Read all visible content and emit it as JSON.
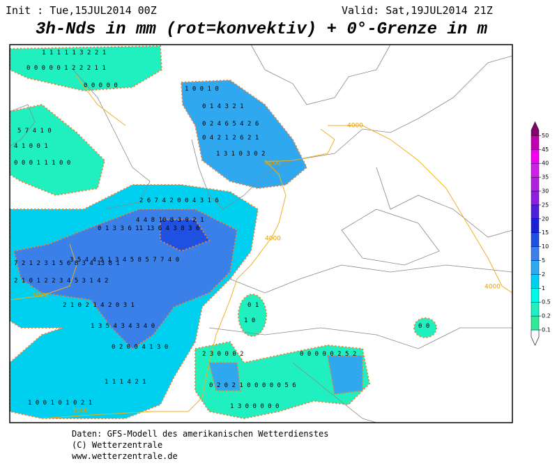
{
  "header": {
    "init": "Init : Tue,15JUL2014 00Z",
    "valid": "Valid: Sat,19JUL2014 21Z",
    "title": "3h-Nds in mm (rot=konvektiv) + 0°-Grenze in m"
  },
  "footer": [
    "Daten: GFS-Modell des amerikanischen Wetterdienstes",
    "(C) Wetterzentrale",
    "www.wetterzentrale.de"
  ],
  "legend": {
    "levels": [
      0.1,
      0.2,
      0.5,
      1,
      2,
      5,
      10,
      15,
      20,
      25,
      30,
      35,
      40,
      45,
      50
    ],
    "colors": [
      "#34e89a",
      "#20f0c0",
      "#00f8e8",
      "#00d0f0",
      "#30a8f0",
      "#3a80e8",
      "#2050e0",
      "#1a20d8",
      "#4a20d8",
      "#8a20e0",
      "#b020e0",
      "#d020e8",
      "#f000f0",
      "#c000b0",
      "#800070"
    ]
  },
  "freezing_level_labels": [
    "4000",
    "4000",
    "4000",
    "4000",
    "3000",
    "3500"
  ],
  "precip_label_rows": [
    "1 1 1 1 1 3 2 2 1",
    "0 0 0 0 0 1 2 2 2 1 1",
    "0 0 0 0 0",
    "1 0 0 1 0",
    "0 1 4 3 2 1",
    "0 2 4 6 5 4 2 6",
    "0 4 2 1 2 6 2 1",
    "1 3 1 0 3 0 2",
    "5 7 4 1 0",
    "4 1 0 0 1",
    "0 0 0 1 1 1 0 0",
    "2 6 7 4 2 0 0 4 3 1 6",
    "4 4 8 10 8 3 0 2 1",
    "0 1 3 3 6 11 13 6 4 3 8 3 0",
    "3 5 4 4 5 1 3 4 5 8 5 7 7 4 0",
    "7 2 1 2 3 1 5 6 8 3 4 13 8 1",
    "2 1 0 1 2 2 3 4 5 3 1 4 2",
    "2 1 0 2 1 4 2 0 3 1",
    "1 3 5 4 3 4 3 4 0",
    "0 2 0 0 4 1 3 0",
    "2 3 0 0 0 2",
    "1 1 1 4 2 1",
    "0 2 0 2 1 0 0 0 0 0 5 6",
    "1 0 0 1 0 1 0 2 1",
    "1 3 0 0 0 0 0",
    "0 0",
    "0 1",
    "1 0",
    "0 0 0 0 0 2 5 2"
  ]
}
